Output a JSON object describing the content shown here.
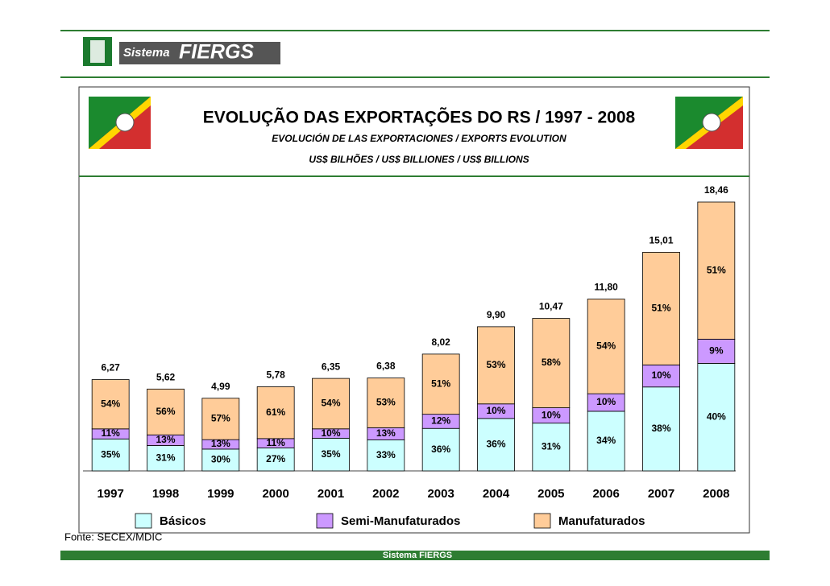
{
  "header": {
    "logo_small": "Sistema",
    "logo_big": "FIERGS"
  },
  "chart_data": {
    "type": "stacked_bar",
    "title": "EVOLUÇÃO DAS EXPORTAÇÕES DO RS / 1997 - 2008",
    "subtitle": "EVOLUCIÓN DE LAS EXPORTACIONES / EXPORTS EVOLUTION",
    "unit_label": "US$ BILHÕES / US$ BILLIONES / US$ BILLIONS",
    "categories": [
      "1997",
      "1998",
      "1999",
      "2000",
      "2001",
      "2002",
      "2003",
      "2004",
      "2005",
      "2006",
      "2007",
      "2008"
    ],
    "totals": {
      "values": [
        6.27,
        5.62,
        4.99,
        5.78,
        6.35,
        6.38,
        8.02,
        9.9,
        10.47,
        11.8,
        15.01,
        18.46
      ],
      "value_labels": [
        "6,27",
        "5,62",
        "4,99",
        "5,78",
        "6,35",
        "6,38",
        "8,02",
        "9,90",
        "10,47",
        "11,80",
        "15,01",
        "18,46"
      ]
    },
    "series": [
      {
        "name": "Básicos",
        "color": "#ccffff",
        "values": [
          35,
          31,
          30,
          27,
          35,
          33,
          36,
          36,
          31,
          34,
          38,
          40
        ],
        "value_labels": [
          "35%",
          "31%",
          "30%",
          "27%",
          "35%",
          "33%",
          "36%",
          "36%",
          "31%",
          "34%",
          "38%",
          "40%"
        ]
      },
      {
        "name": "Semi-Manufaturados",
        "color": "#cc99ff",
        "values": [
          11,
          13,
          13,
          11,
          10,
          13,
          12,
          10,
          10,
          10,
          10,
          9
        ],
        "value_labels": [
          "11%",
          "13%",
          "13%",
          "11%",
          "10%",
          "13%",
          "12%",
          "10%",
          "10%",
          "10%",
          "10%",
          "9%"
        ]
      },
      {
        "name": "Manufaturados",
        "color": "#ffcc99",
        "values": [
          54,
          56,
          57,
          61,
          54,
          53,
          51,
          53,
          58,
          54,
          51,
          51
        ],
        "value_labels": [
          "54%",
          "56%",
          "57%",
          "61%",
          "54%",
          "53%",
          "51%",
          "53%",
          "58%",
          "54%",
          "51%",
          "51%"
        ]
      }
    ]
  },
  "source": "Fonte: SECEX/MDIC",
  "footer_brand": "Sistema FIERGS"
}
